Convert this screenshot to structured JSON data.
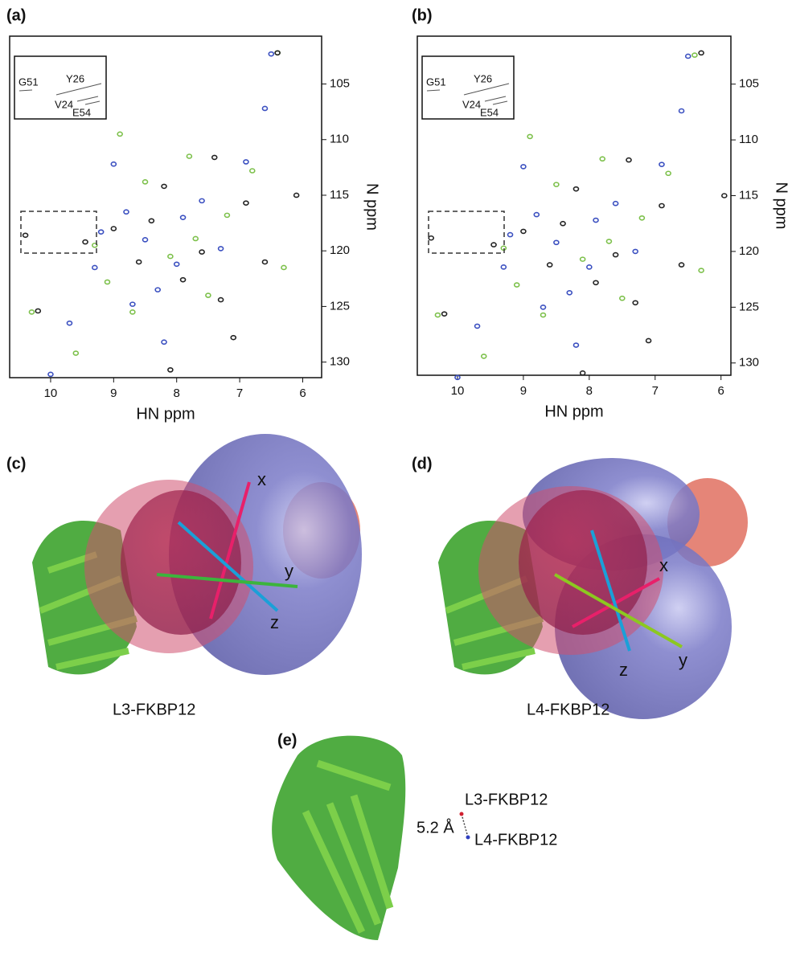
{
  "chart_data": [
    {
      "type": "scatter",
      "label": "(a)",
      "xlabel": "HN ppm",
      "ylabel": "N ppm",
      "xlim": [
        10.65,
        5.7
      ],
      "ylim": [
        100.7,
        131.4
      ],
      "xticks": [
        10,
        9,
        8,
        7,
        6
      ],
      "yticks": [
        105,
        110,
        115,
        120,
        125,
        130
      ],
      "annotations": [
        "G51",
        "Y26",
        "V24",
        "E54"
      ],
      "series": [
        {
          "color": "#3a4fc0",
          "x": [
            10.0,
            9.7,
            9.3,
            9.2,
            9.0,
            8.8,
            8.5,
            8.3,
            8.2,
            7.9,
            7.6,
            7.3,
            6.9,
            6.6,
            6.5,
            8.7,
            8.0
          ],
          "values": [
            131.1,
            126.5,
            121.5,
            118.3,
            112.2,
            116.5,
            119.0,
            123.5,
            128.2,
            117.0,
            115.5,
            119.8,
            112.0,
            107.2,
            102.3,
            124.8,
            121.2
          ]
        },
        {
          "color": "#7cc04a",
          "x": [
            10.3,
            9.6,
            9.3,
            9.1,
            8.7,
            8.5,
            8.1,
            7.8,
            7.5,
            7.2,
            6.8,
            6.4,
            6.3,
            8.9,
            7.7
          ],
          "values": [
            125.5,
            129.2,
            119.5,
            122.8,
            125.5,
            113.8,
            120.5,
            111.5,
            124.0,
            116.8,
            112.8,
            102.2,
            121.5,
            109.5,
            118.9
          ]
        },
        {
          "color": "#222222",
          "x": [
            10.4,
            10.2,
            9.45,
            9.0,
            8.6,
            8.4,
            8.1,
            7.9,
            7.6,
            7.4,
            7.1,
            6.9,
            6.6,
            6.4,
            6.1,
            8.2,
            7.3
          ],
          "values": [
            118.6,
            125.4,
            119.2,
            118.0,
            121.0,
            117.3,
            130.7,
            122.6,
            120.1,
            111.6,
            127.8,
            115.7,
            121.0,
            102.2,
            115.0,
            114.2,
            124.4
          ]
        }
      ]
    },
    {
      "type": "scatter",
      "label": "(b)",
      "xlabel": "HN ppm",
      "ylabel": "N ppm",
      "xlim": [
        10.61,
        5.85
      ],
      "ylim": [
        100.7,
        131.1
      ],
      "xticks": [
        10,
        9,
        8,
        7,
        6
      ],
      "yticks": [
        105,
        110,
        115,
        120,
        125,
        130
      ],
      "annotations": [
        "G51",
        "Y26",
        "V24",
        "E54"
      ],
      "series": [
        {
          "color": "#3a4fc0",
          "x": [
            10.0,
            9.7,
            9.3,
            9.2,
            9.0,
            8.8,
            8.5,
            8.3,
            8.2,
            7.9,
            7.6,
            7.3,
            6.9,
            6.6,
            6.5,
            8.7,
            8.0
          ],
          "values": [
            131.3,
            126.7,
            121.4,
            118.5,
            112.4,
            116.7,
            119.2,
            123.7,
            128.4,
            117.2,
            115.7,
            120.0,
            112.2,
            107.4,
            102.5,
            125.0,
            121.4
          ]
        },
        {
          "color": "#7cc04a",
          "x": [
            10.3,
            9.6,
            9.3,
            9.1,
            8.7,
            8.5,
            8.1,
            7.8,
            7.5,
            7.2,
            6.8,
            6.4,
            6.3,
            8.9,
            7.7
          ],
          "values": [
            125.7,
            129.4,
            119.7,
            123.0,
            125.7,
            114.0,
            120.7,
            111.7,
            124.2,
            117.0,
            113.0,
            102.4,
            121.7,
            109.7,
            119.1
          ]
        },
        {
          "color": "#222222",
          "x": [
            10.4,
            10.2,
            9.45,
            9.0,
            8.6,
            8.4,
            8.1,
            7.9,
            7.6,
            7.4,
            7.1,
            6.9,
            6.6,
            6.3,
            5.95,
            8.2,
            7.3
          ],
          "values": [
            118.8,
            125.6,
            119.4,
            118.2,
            121.2,
            117.5,
            130.9,
            122.8,
            120.3,
            111.8,
            128.0,
            115.9,
            121.2,
            102.2,
            115.0,
            114.4,
            124.6
          ]
        }
      ]
    }
  ],
  "structures": {
    "c": {
      "label": "(c)",
      "name": "L3-FKBP12",
      "axes": [
        "x",
        "y",
        "z"
      ]
    },
    "d": {
      "label": "(d)",
      "name": "L4-FKBP12",
      "axes": [
        "x",
        "y",
        "z"
      ]
    },
    "e": {
      "label": "(e)",
      "upper": "L3-FKBP12",
      "lower": "L4-FKBP12",
      "distance": "5.2 Å"
    }
  }
}
